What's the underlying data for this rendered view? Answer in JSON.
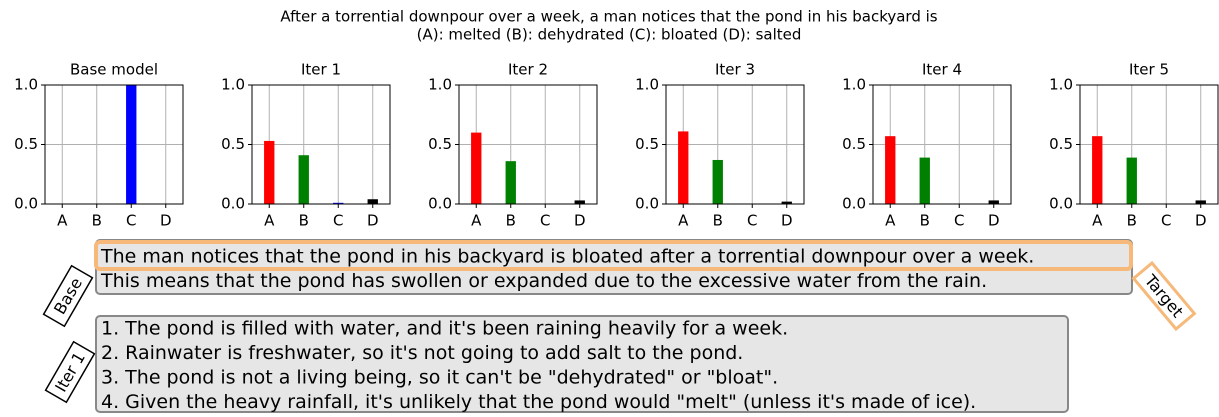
{
  "title": [
    "After a torrential downpour over a week, a man notices that the pond in his backyard is",
    "(A): melted (B): dehydrated (C): bloated (D): salted"
  ],
  "chart_data": [
    {
      "type": "bar",
      "title": "Base model",
      "categories": [
        "A",
        "B",
        "C",
        "D"
      ],
      "values": [
        0,
        0,
        1.0,
        0
      ],
      "colors": [
        "red",
        "green",
        "blue",
        "black"
      ],
      "ylim": [
        0,
        1
      ],
      "yticks": [
        {
          "value": 0,
          "label": "0.0"
        },
        {
          "value": 0.5,
          "label": "0.5"
        },
        {
          "value": 1,
          "label": "1.0"
        }
      ],
      "grid": true
    },
    {
      "type": "bar",
      "title": "Iter 1",
      "categories": [
        "A",
        "B",
        "C",
        "D"
      ],
      "values": [
        0.53,
        0.41,
        0.01,
        0.04
      ],
      "colors": [
        "red",
        "green",
        "blue",
        "black"
      ],
      "ylim": [
        0,
        1
      ],
      "yticks": [
        {
          "value": 0,
          "label": "0.0"
        },
        {
          "value": 0.5,
          "label": "0.5"
        },
        {
          "value": 1,
          "label": "1.0"
        }
      ],
      "grid": true
    },
    {
      "type": "bar",
      "title": "Iter 2",
      "categories": [
        "A",
        "B",
        "C",
        "D"
      ],
      "values": [
        0.6,
        0.36,
        0.0,
        0.03
      ],
      "colors": [
        "red",
        "green",
        "blue",
        "black"
      ],
      "ylim": [
        0,
        1
      ],
      "yticks": [
        {
          "value": 0,
          "label": "0.0"
        },
        {
          "value": 0.5,
          "label": "0.5"
        },
        {
          "value": 1,
          "label": "1.0"
        }
      ],
      "grid": true
    },
    {
      "type": "bar",
      "title": "Iter 3",
      "categories": [
        "A",
        "B",
        "C",
        "D"
      ],
      "values": [
        0.61,
        0.37,
        0.0,
        0.02
      ],
      "colors": [
        "red",
        "green",
        "blue",
        "black"
      ],
      "ylim": [
        0,
        1
      ],
      "yticks": [
        {
          "value": 0,
          "label": "0.0"
        },
        {
          "value": 0.5,
          "label": "0.5"
        },
        {
          "value": 1,
          "label": "1.0"
        }
      ],
      "grid": true
    },
    {
      "type": "bar",
      "title": "Iter 4",
      "categories": [
        "A",
        "B",
        "C",
        "D"
      ],
      "values": [
        0.57,
        0.39,
        0.0,
        0.03
      ],
      "colors": [
        "red",
        "green",
        "blue",
        "black"
      ],
      "ylim": [
        0,
        1
      ],
      "yticks": [
        {
          "value": 0,
          "label": "0.0"
        },
        {
          "value": 0.5,
          "label": "0.5"
        },
        {
          "value": 1,
          "label": "1.0"
        }
      ],
      "grid": true
    },
    {
      "type": "bar",
      "title": "Iter 5",
      "categories": [
        "A",
        "B",
        "C",
        "D"
      ],
      "values": [
        0.57,
        0.39,
        0.0,
        0.03
      ],
      "colors": [
        "red",
        "green",
        "blue",
        "black"
      ],
      "ylim": [
        0,
        1
      ],
      "yticks": [
        {
          "value": 0,
          "label": "0.0"
        },
        {
          "value": 0.5,
          "label": "0.5"
        },
        {
          "value": 1,
          "label": "1.0"
        }
      ],
      "grid": true
    }
  ],
  "responses": [
    {
      "tag": "Base",
      "lines": [
        "The man notices that the pond in his backyard is bloated after a torrential downpour over a week.",
        "This means that the pond has swollen or expanded due to the excessive water from the rain."
      ]
    },
    {
      "tag": "Iter 1",
      "lines": [
        "1. The pond is filled with water, and it's been raining heavily for a week.",
        "2. Rainwater is freshwater, so it's not going to add salt to the pond.",
        "3. The pond is not a living being, so it can't be \"dehydrated\" or \"bloat\".",
        "4. Given the heavy rainfall, it's unlikely that the pond would \"melt\" (unless it's made of ice)."
      ]
    }
  ],
  "target_label": "Target"
}
